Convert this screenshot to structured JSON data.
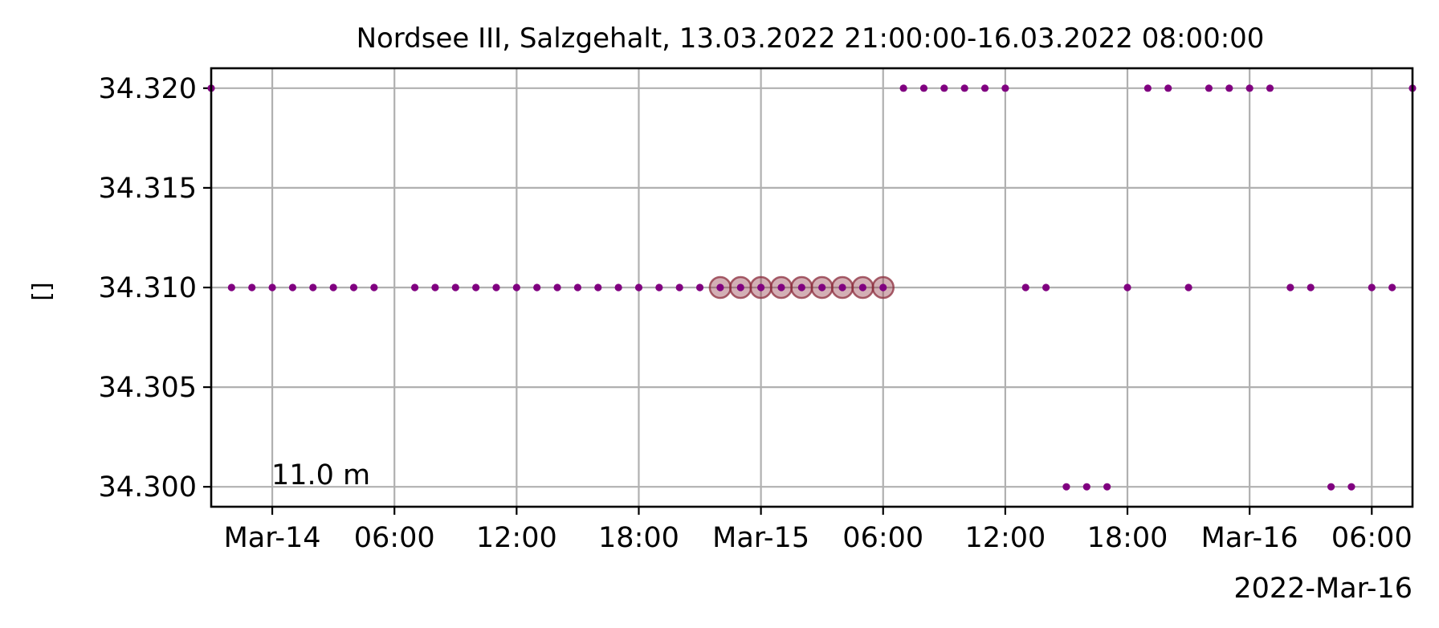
{
  "chart_data": {
    "type": "scatter",
    "title": "Nordsee III, Salzgehalt, 13.03.2022 21:00:00-16.03.2022 08:00:00",
    "ylabel": "[]",
    "xlabel": "",
    "annotation": "11.0 m",
    "x_offset_label": "2022-Mar-16",
    "xlim": [
      "2022-03-13 21:00",
      "2022-03-16 08:00"
    ],
    "ylim": [
      34.299,
      34.321
    ],
    "grid": true,
    "x_ticks": [
      {
        "t": "2022-03-14 00:00",
        "label": "Mar-14"
      },
      {
        "t": "2022-03-14 06:00",
        "label": "06:00"
      },
      {
        "t": "2022-03-14 12:00",
        "label": "12:00"
      },
      {
        "t": "2022-03-14 18:00",
        "label": "18:00"
      },
      {
        "t": "2022-03-15 00:00",
        "label": "Mar-15"
      },
      {
        "t": "2022-03-15 06:00",
        "label": "06:00"
      },
      {
        "t": "2022-03-15 12:00",
        "label": "12:00"
      },
      {
        "t": "2022-03-15 18:00",
        "label": "18:00"
      },
      {
        "t": "2022-03-16 00:00",
        "label": "Mar-16"
      },
      {
        "t": "2022-03-16 06:00",
        "label": "06:00"
      }
    ],
    "y_ticks": [
      {
        "v": 34.3,
        "label": "34.300"
      },
      {
        "v": 34.305,
        "label": "34.305"
      },
      {
        "v": 34.31,
        "label": "34.310"
      },
      {
        "v": 34.315,
        "label": "34.315"
      },
      {
        "v": 34.32,
        "label": "34.320"
      }
    ],
    "series": [
      {
        "marker_color": "#800080",
        "points": [
          {
            "t": "2022-03-13 21:00",
            "y": 34.32
          },
          {
            "t": "2022-03-13 22:00",
            "y": 34.31
          },
          {
            "t": "2022-03-13 23:00",
            "y": 34.31
          },
          {
            "t": "2022-03-14 00:00",
            "y": 34.31
          },
          {
            "t": "2022-03-14 01:00",
            "y": 34.31
          },
          {
            "t": "2022-03-14 02:00",
            "y": 34.31
          },
          {
            "t": "2022-03-14 03:00",
            "y": 34.31
          },
          {
            "t": "2022-03-14 04:00",
            "y": 34.31
          },
          {
            "t": "2022-03-14 05:00",
            "y": 34.31
          },
          {
            "t": "2022-03-14 07:00",
            "y": 34.31
          },
          {
            "t": "2022-03-14 08:00",
            "y": 34.31
          },
          {
            "t": "2022-03-14 09:00",
            "y": 34.31
          },
          {
            "t": "2022-03-14 10:00",
            "y": 34.31
          },
          {
            "t": "2022-03-14 11:00",
            "y": 34.31
          },
          {
            "t": "2022-03-14 12:00",
            "y": 34.31
          },
          {
            "t": "2022-03-14 13:00",
            "y": 34.31
          },
          {
            "t": "2022-03-14 14:00",
            "y": 34.31
          },
          {
            "t": "2022-03-14 15:00",
            "y": 34.31
          },
          {
            "t": "2022-03-14 16:00",
            "y": 34.31
          },
          {
            "t": "2022-03-14 17:00",
            "y": 34.31
          },
          {
            "t": "2022-03-14 18:00",
            "y": 34.31
          },
          {
            "t": "2022-03-14 19:00",
            "y": 34.31
          },
          {
            "t": "2022-03-14 20:00",
            "y": 34.31
          },
          {
            "t": "2022-03-14 21:00",
            "y": 34.31
          },
          {
            "t": "2022-03-14 22:00",
            "y": 34.31,
            "flagged": true
          },
          {
            "t": "2022-03-14 23:00",
            "y": 34.31,
            "flagged": true
          },
          {
            "t": "2022-03-15 00:00",
            "y": 34.31,
            "flagged": true
          },
          {
            "t": "2022-03-15 01:00",
            "y": 34.31,
            "flagged": true
          },
          {
            "t": "2022-03-15 02:00",
            "y": 34.31,
            "flagged": true
          },
          {
            "t": "2022-03-15 03:00",
            "y": 34.31,
            "flagged": true
          },
          {
            "t": "2022-03-15 04:00",
            "y": 34.31,
            "flagged": true
          },
          {
            "t": "2022-03-15 05:00",
            "y": 34.31,
            "flagged": true
          },
          {
            "t": "2022-03-15 06:00",
            "y": 34.31,
            "flagged": true
          },
          {
            "t": "2022-03-15 07:00",
            "y": 34.32
          },
          {
            "t": "2022-03-15 08:00",
            "y": 34.32
          },
          {
            "t": "2022-03-15 09:00",
            "y": 34.32
          },
          {
            "t": "2022-03-15 10:00",
            "y": 34.32
          },
          {
            "t": "2022-03-15 11:00",
            "y": 34.32
          },
          {
            "t": "2022-03-15 12:00",
            "y": 34.32
          },
          {
            "t": "2022-03-15 13:00",
            "y": 34.31
          },
          {
            "t": "2022-03-15 14:00",
            "y": 34.31
          },
          {
            "t": "2022-03-15 15:00",
            "y": 34.3
          },
          {
            "t": "2022-03-15 16:00",
            "y": 34.3
          },
          {
            "t": "2022-03-15 17:00",
            "y": 34.3
          },
          {
            "t": "2022-03-15 18:00",
            "y": 34.31
          },
          {
            "t": "2022-03-15 19:00",
            "y": 34.32
          },
          {
            "t": "2022-03-15 20:00",
            "y": 34.32
          },
          {
            "t": "2022-03-15 21:00",
            "y": 34.31
          },
          {
            "t": "2022-03-15 22:00",
            "y": 34.32
          },
          {
            "t": "2022-03-15 23:00",
            "y": 34.32
          },
          {
            "t": "2022-03-16 00:00",
            "y": 34.32
          },
          {
            "t": "2022-03-16 01:00",
            "y": 34.32
          },
          {
            "t": "2022-03-16 02:00",
            "y": 34.31
          },
          {
            "t": "2022-03-16 03:00",
            "y": 34.31
          },
          {
            "t": "2022-03-16 04:00",
            "y": 34.3
          },
          {
            "t": "2022-03-16 05:00",
            "y": 34.3
          },
          {
            "t": "2022-03-16 06:00",
            "y": 34.31
          },
          {
            "t": "2022-03-16 07:00",
            "y": 34.31
          },
          {
            "t": "2022-03-16 08:00",
            "y": 34.32
          }
        ]
      }
    ],
    "flag_marker_color": "#8b2c3c"
  }
}
